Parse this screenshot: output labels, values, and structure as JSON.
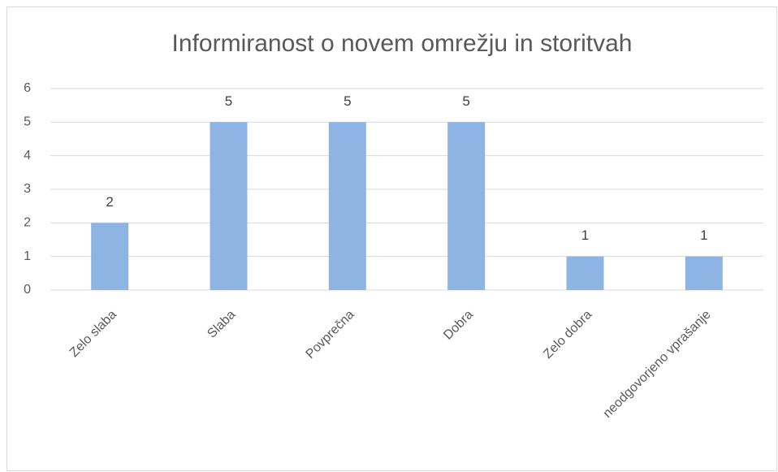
{
  "chart_data": {
    "type": "bar",
    "title": "Informiranost o novem omrežju in storitvah",
    "categories": [
      "Zelo slaba",
      "Slaba",
      "Povprečna",
      "Dobra",
      "Zelo dobra",
      "neodgovorjeno vprašanje"
    ],
    "values": [
      2,
      5,
      5,
      5,
      1,
      1
    ],
    "color": "#8eb4e3",
    "ylim": [
      0,
      6
    ],
    "yticks": [
      0,
      1,
      2,
      3,
      4,
      5,
      6
    ],
    "grid": true
  }
}
